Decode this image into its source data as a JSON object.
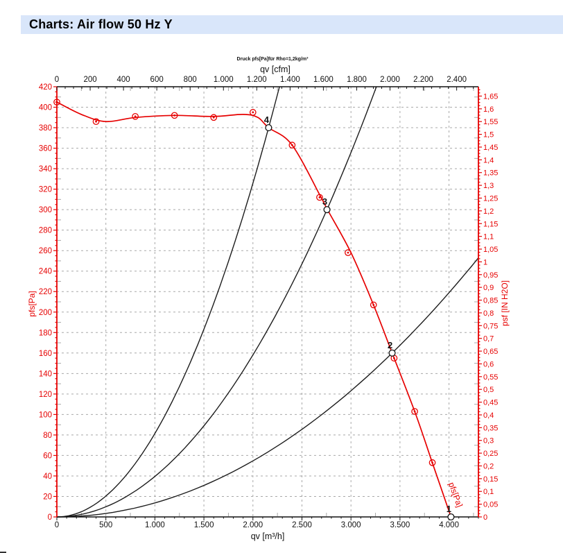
{
  "page": {
    "title": "Charts: Air flow 50 Hz Y"
  },
  "chart_data": {
    "type": "line",
    "subtitle": "Druck pfs[Pa]für Rho=1,2kg/m³",
    "colors": {
      "fan_curve": "#e60000",
      "system_curve": "#1c1c1c",
      "grid": "#a8a8a8",
      "axis_red": "#e60000",
      "axis_black": "#111111",
      "title_bg": "#d9e6fa"
    },
    "axes": {
      "bottom": {
        "label": "qv [m³/h]",
        "min": 0,
        "max": 4300,
        "major_step": 500,
        "minor_step": 100,
        "tick_labels": [
          "0",
          "500",
          "1.000",
          "1.500",
          "2.000",
          "2.500",
          "3.000",
          "3.500",
          "4.000"
        ]
      },
      "top": {
        "label": "qv [cfm]",
        "min": 0,
        "max": 2530.6,
        "major_step": 200,
        "minor_step": 50,
        "tick_labels": [
          "0",
          "200",
          "400",
          "600",
          "800",
          "1.000",
          "1.200",
          "1.400",
          "1.600",
          "1.800",
          "2.000",
          "2.200",
          "2.400"
        ]
      },
      "left": {
        "label": "pfs[Pa]",
        "min": 0,
        "max": 420,
        "major_step": 20,
        "minor_step": 5
      },
      "right": {
        "label": "psf [IN H2O]",
        "min": 0,
        "max": 1.6866,
        "major_step": 0.05,
        "minor_step": 0.0125,
        "last_label": 1.65
      }
    },
    "fan_curve": {
      "inline_label": "pfs[Pa]",
      "curve_points": [
        [
          0,
          405
        ],
        [
          250,
          393
        ],
        [
          500,
          386
        ],
        [
          800,
          390
        ],
        [
          1200,
          392
        ],
        [
          1600,
          391
        ],
        [
          1900,
          393
        ],
        [
          2050,
          390
        ],
        [
          2160,
          380
        ],
        [
          2400,
          363
        ],
        [
          2700,
          311
        ],
        [
          2760,
          300
        ],
        [
          3000,
          258
        ],
        [
          3230,
          207
        ],
        [
          3420,
          160
        ],
        [
          3650,
          103
        ],
        [
          3830,
          53
        ],
        [
          4020,
          0
        ]
      ],
      "marker_points": [
        [
          0,
          405
        ],
        [
          400,
          386
        ],
        [
          800,
          391
        ],
        [
          1200,
          392
        ],
        [
          1600,
          390
        ],
        [
          2000,
          395
        ],
        [
          2400,
          363
        ],
        [
          2680,
          312
        ],
        [
          2970,
          258
        ],
        [
          3230,
          207
        ],
        [
          3440,
          155
        ],
        [
          3650,
          103
        ],
        [
          3830,
          53
        ]
      ]
    },
    "system_curves": [
      {
        "through_q": 2160,
        "through_p": 380
      },
      {
        "through_q": 2755,
        "through_p": 300
      },
      {
        "through_q": 3420,
        "through_p": 160
      }
    ],
    "operating_points": [
      {
        "label": "4",
        "q": 2160,
        "p": 380
      },
      {
        "label": "3",
        "q": 2755,
        "p": 300
      },
      {
        "label": "2",
        "q": 3420,
        "p": 160
      },
      {
        "label": "1",
        "q": 4020,
        "p": 0
      }
    ]
  }
}
